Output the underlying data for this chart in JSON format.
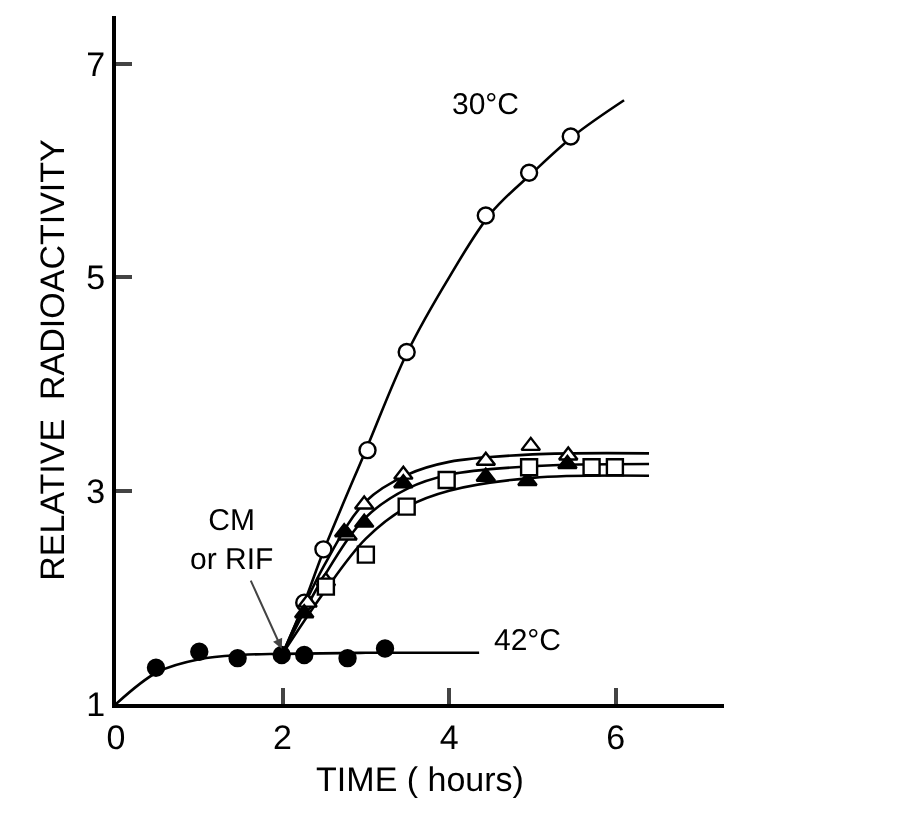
{
  "chart_data": {
    "type": "scatter",
    "xlabel": "TIME ( hours)",
    "ylabel": "RELATIVE  RADIOACTIVITY",
    "xlim": [
      0,
      7.3
    ],
    "ylim": [
      1,
      7.45
    ],
    "xticks": [
      0,
      2,
      4,
      6
    ],
    "yticks": [
      1,
      3,
      5,
      7
    ],
    "series": [
      {
        "type": "line",
        "color": "#000000",
        "marker": "none",
        "x": [
          2,
          2.26,
          2.5,
          3,
          3.5,
          4,
          4.5,
          5,
          5.5,
          6.1
        ],
        "values": [
          1.47,
          1.95,
          2.45,
          3.38,
          4.3,
          5.0,
          5.6,
          5.98,
          6.33,
          6.66
        ]
      },
      {
        "type": "line",
        "color": "#000000",
        "marker": "none",
        "x": [
          0,
          0.5,
          1,
          1.5,
          2,
          3,
          4.36
        ],
        "values": [
          1,
          1.3,
          1.42,
          1.46,
          1.47,
          1.48,
          1.48
        ]
      },
      {
        "type": "line",
        "color": "#000000",
        "marker": "none",
        "x": [
          2,
          2.5,
          3,
          3.5,
          4,
          5,
          6.4
        ],
        "values": [
          1.47,
          2.3,
          2.9,
          3.15,
          3.27,
          3.34,
          3.35
        ]
      },
      {
        "type": "line",
        "color": "#000000",
        "marker": "none",
        "x": [
          2,
          2.5,
          3,
          3.5,
          4,
          5,
          6.4
        ],
        "values": [
          1.47,
          2.2,
          2.75,
          3.02,
          3.15,
          3.23,
          3.25
        ]
      },
      {
        "type": "line",
        "color": "#000000",
        "marker": "none",
        "x": [
          2,
          2.5,
          3,
          3.5,
          4,
          5,
          6.4
        ],
        "values": [
          1.47,
          2.05,
          2.55,
          2.85,
          3.0,
          3.12,
          3.14
        ]
      },
      {
        "color": "#ffffff",
        "marker": "circle",
        "x": [
          2.26,
          2.49,
          3.02,
          3.49,
          4.44,
          4.96,
          5.46
        ],
        "values": [
          1.95,
          2.45,
          3.38,
          4.3,
          5.58,
          5.98,
          6.32
        ]
      },
      {
        "color": "#000000",
        "marker": "circle",
        "x": [
          0.48,
          1.0,
          1.46,
          1.99,
          2.26,
          2.78,
          3.23
        ],
        "values": [
          1.34,
          1.49,
          1.43,
          1.46,
          1.46,
          1.43,
          1.52
        ]
      },
      {
        "color": "#ffffff",
        "marker": "triangle",
        "x": [
          2.3,
          2.52,
          2.78,
          2.98,
          3.45,
          4.44,
          4.98,
          5.43
        ],
        "values": [
          1.95,
          2.15,
          2.58,
          2.87,
          3.15,
          3.28,
          3.42,
          3.33
        ]
      },
      {
        "color": "#000000",
        "marker": "triangle",
        "x": [
          2.26,
          2.74,
          2.98,
          3.45,
          4.44,
          4.94,
          5.42
        ],
        "values": [
          1.85,
          2.61,
          2.7,
          3.07,
          3.13,
          3.09,
          3.25
        ]
      },
      {
        "color": "#ffffff",
        "marker": "square",
        "x": [
          2.52,
          3.0,
          3.49,
          3.97,
          4.96,
          5.71,
          5.99
        ],
        "values": [
          2.1,
          2.4,
          2.85,
          3.1,
          3.22,
          3.22,
          3.22
        ]
      }
    ],
    "annotations": [
      "30°C",
      "42°C",
      {
        "text": "CM\nor RIF",
        "x": 2.0,
        "y": 1.5
      }
    ]
  }
}
